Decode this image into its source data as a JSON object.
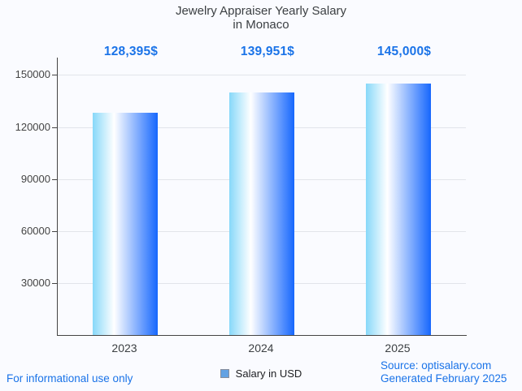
{
  "page": {
    "background": "#fafbff",
    "footer_left": "For informational use only",
    "footer_right_line1": "Source: optisalary.com",
    "footer_right_line2": "Generated February 2025",
    "footer_color": "#1a73e8"
  },
  "chart_data": {
    "type": "bar",
    "title": "Jewelry Appraiser Yearly Salary in Monaco",
    "title_line1": "Jewelry Appraiser Yearly Salary",
    "title_line2": "in Monaco",
    "categories": [
      "2023",
      "2024",
      "2025"
    ],
    "values": [
      128395,
      139951,
      145000
    ],
    "value_labels": [
      "128,395$",
      "139,951$",
      "145,000$"
    ],
    "series": [
      {
        "name": "Salary in USD",
        "values": [
          128395,
          139951,
          145000
        ]
      }
    ],
    "legend_label": "Salary in USD",
    "legend_position": "bottom",
    "y_ticks": [
      30000,
      60000,
      90000,
      120000,
      150000
    ],
    "ylim": [
      0,
      160000
    ],
    "grid": true,
    "xlabel": "",
    "ylabel": "",
    "colors": {
      "bar_gradient_left": "#87d8f9",
      "bar_gradient_mid": "#ffffff",
      "bar_gradient_right": "#1667fd",
      "value_label": "#1a73e8",
      "legend_swatch": "#63a2e3",
      "title_text": "#3c4043",
      "axis_text": "#444444",
      "gridline": "#e2e4ea"
    }
  }
}
